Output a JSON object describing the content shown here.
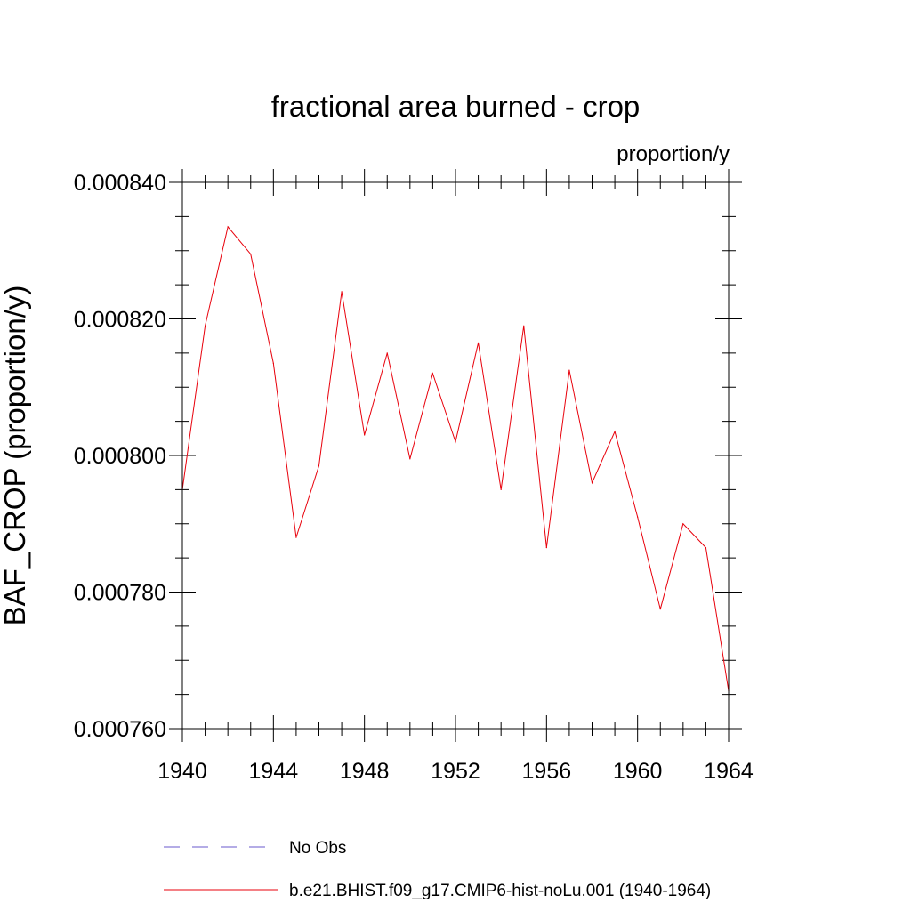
{
  "chart_data": {
    "type": "line",
    "title": "fractional area burned - crop",
    "units_label": "proportion/y",
    "xlabel": "",
    "ylabel": "BAF_CROP  (proportion/y)",
    "xlim": [
      1940,
      1964
    ],
    "ylim": [
      0.00076,
      0.00084
    ],
    "x_ticks": [
      1940,
      1944,
      1948,
      1952,
      1956,
      1960,
      1964
    ],
    "x_tick_labels": [
      "1940",
      "1944",
      "1948",
      "1952",
      "1956",
      "1960",
      "1964"
    ],
    "y_ticks": [
      0.00076,
      0.00078,
      0.0008,
      0.00082,
      0.00084
    ],
    "y_tick_labels": [
      "0.000760",
      "0.000780",
      "0.000800",
      "0.000820",
      "0.000840"
    ],
    "y_minor_step": 5e-06,
    "x_minor_step": 1,
    "grid": false,
    "legend_placement": "bottom",
    "series": [
      {
        "name": "b.e21.BHIST.f09_g17.CMIP6-hist-noLu.001 (1940-1964)",
        "color": "#e8000b",
        "dash": "solid",
        "x": [
          1940,
          1941,
          1942,
          1943,
          1944,
          1945,
          1946,
          1947,
          1948,
          1949,
          1950,
          1951,
          1952,
          1953,
          1954,
          1955,
          1956,
          1957,
          1958,
          1959,
          1960,
          1961,
          1962,
          1963,
          1964
        ],
        "values": [
          0.000795,
          0.000819,
          0.0008335,
          0.0008295,
          0.0008135,
          0.000788,
          0.0007985,
          0.000824,
          0.000803,
          0.000815,
          0.0007995,
          0.000812,
          0.000802,
          0.0008165,
          0.000795,
          0.000819,
          0.0007865,
          0.0008125,
          0.000796,
          0.0008035,
          0.000791,
          0.0007775,
          0.00079,
          0.0007865,
          0.0007655
        ]
      }
    ],
    "legend": [
      {
        "label": "No Obs",
        "color": "#6a5acd",
        "dash": "dashed"
      },
      {
        "label": "b.e21.BHIST.f09_g17.CMIP6-hist-noLu.001 (1940-1964)",
        "color": "#e8000b",
        "dash": "solid"
      }
    ]
  }
}
